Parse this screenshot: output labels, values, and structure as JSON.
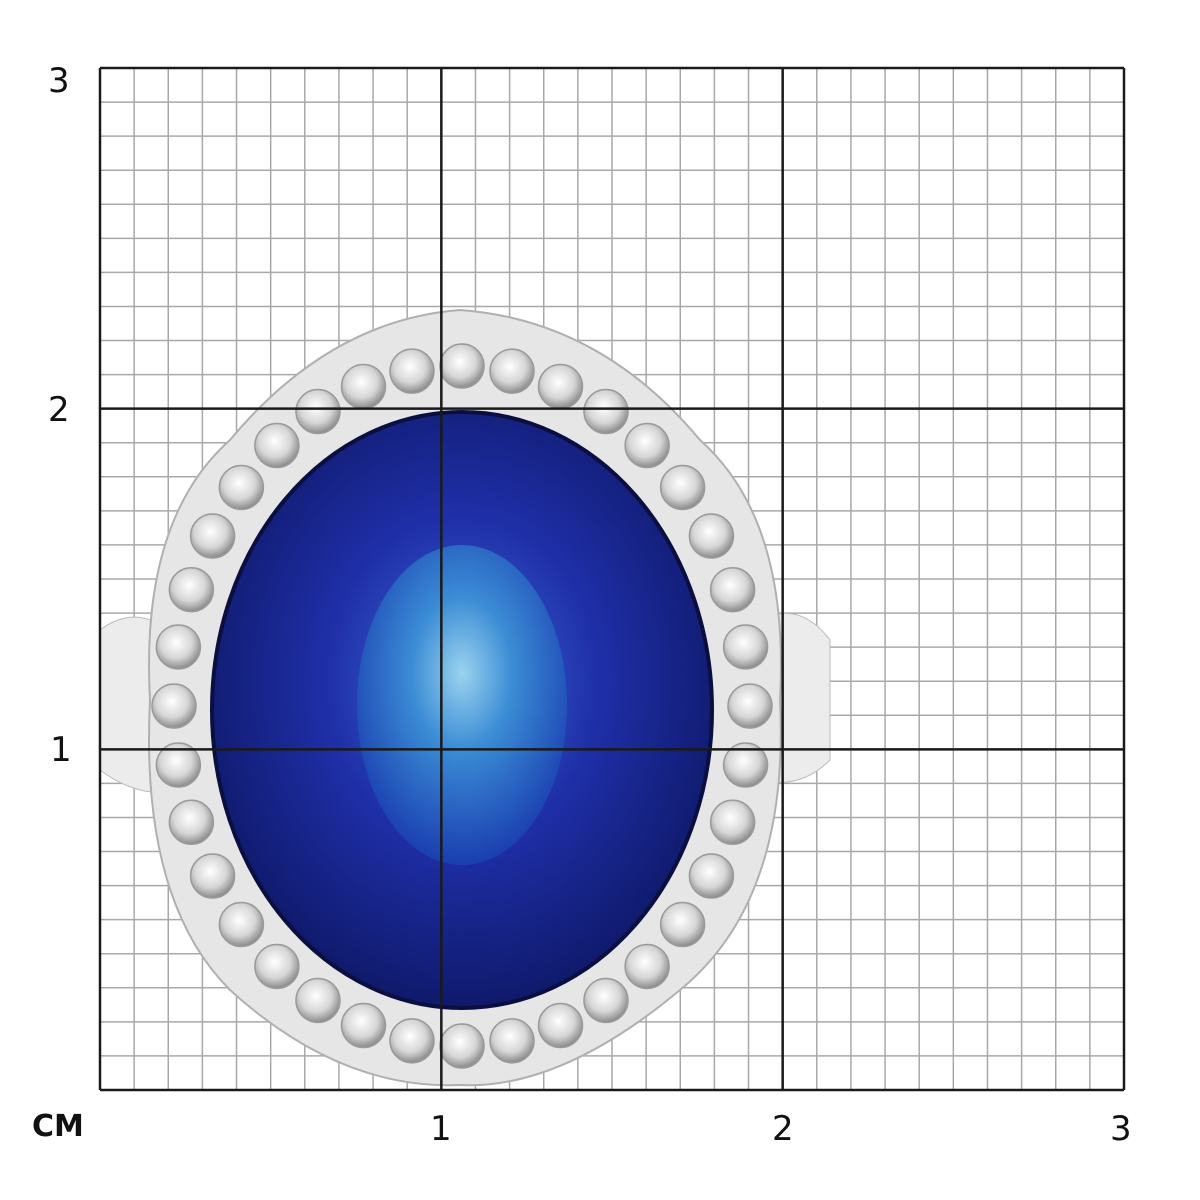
{
  "scale": {
    "unit_label": "CM",
    "y_labels": [
      "3",
      "2",
      "1"
    ],
    "x_labels": [
      "1",
      "2",
      "3"
    ],
    "range_cm": [
      0,
      3
    ],
    "minor_divisions_per_cm": 10
  },
  "colors": {
    "major_grid": "#1a1a1a",
    "minor_grid": "#a8a8a8",
    "sapphire": "#1a2a9a",
    "sapphire_center": "#3a8ad8",
    "metal": "#e4e4e4"
  }
}
